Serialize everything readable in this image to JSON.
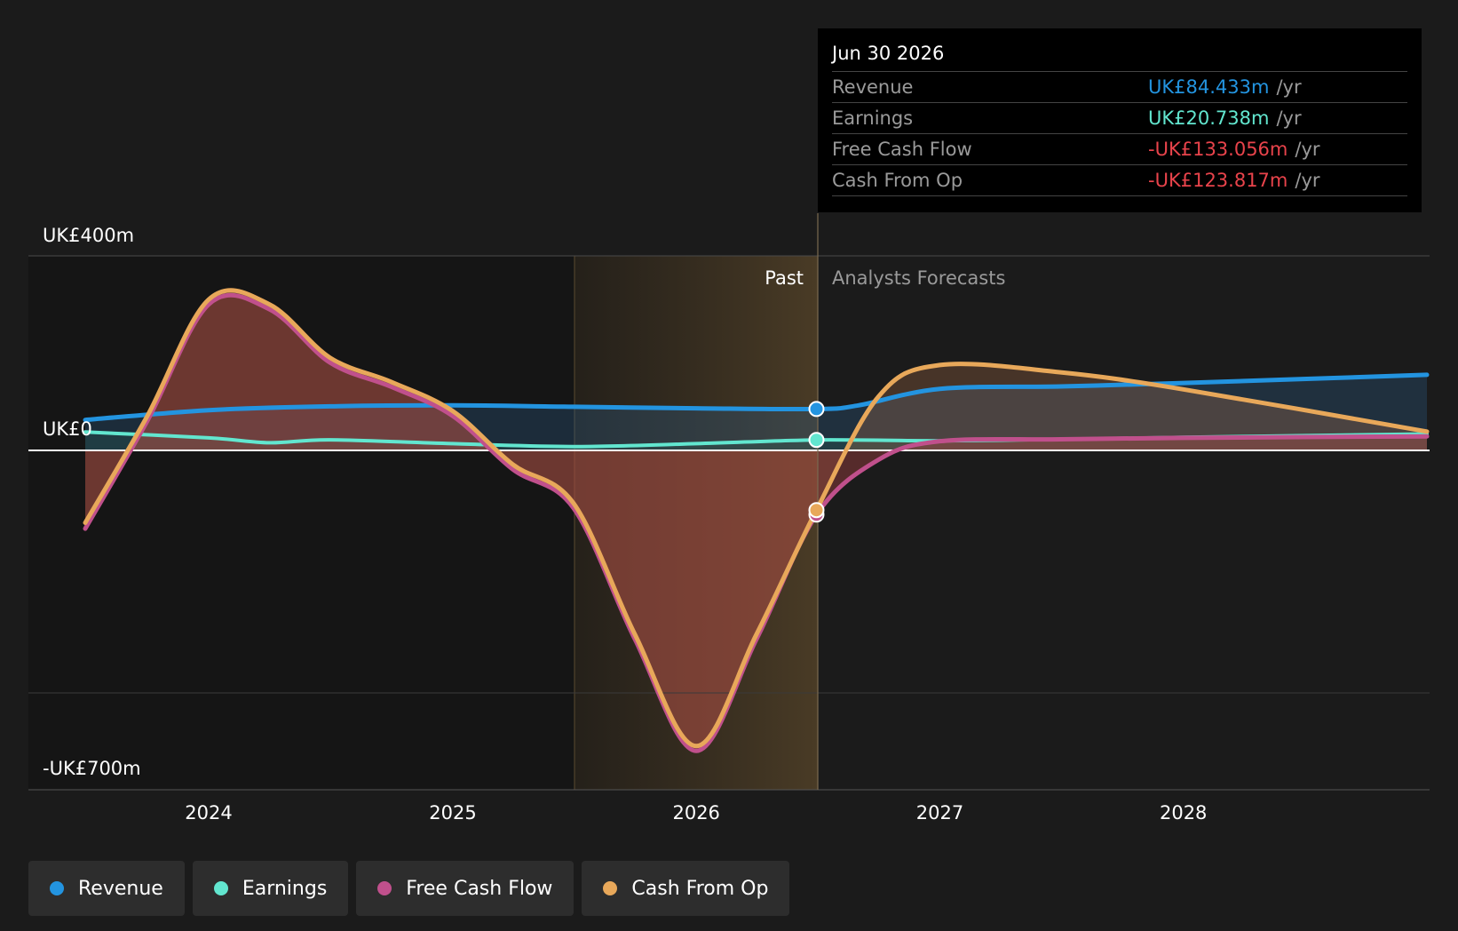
{
  "colors": {
    "revenue": "#2394e0",
    "earnings": "#62e6cf",
    "free_cash_flow": "#c0508c",
    "cash_from_op": "#e8a85a",
    "negative": "#e8434b",
    "background": "#1b1b1b"
  },
  "y_axis": {
    "top_label": "UK£400m",
    "zero_label": "UK£0",
    "bottom_label": "-UK£700m"
  },
  "regions": {
    "past_label": "Past",
    "forecast_label": "Analysts Forecasts"
  },
  "tooltip": {
    "date": "Jun 30 2026",
    "rows": [
      {
        "label": "Revenue",
        "value": "UK£84.433m",
        "unit": "/yr"
      },
      {
        "label": "Earnings",
        "value": "UK£20.738m",
        "unit": "/yr"
      },
      {
        "label": "Free Cash Flow",
        "value": "-UK£133.056m",
        "unit": "/yr"
      },
      {
        "label": "Cash From Op",
        "value": "-UK£123.817m",
        "unit": "/yr"
      }
    ]
  },
  "legend": [
    {
      "label": "Revenue",
      "color": "#2394e0"
    },
    {
      "label": "Earnings",
      "color": "#62e6cf"
    },
    {
      "label": "Free Cash Flow",
      "color": "#c0508c"
    },
    {
      "label": "Cash From Op",
      "color": "#e8a85a"
    }
  ],
  "chart_data": {
    "type": "line",
    "x_ticks": [
      "2024",
      "2025",
      "2026",
      "2027",
      "2028"
    ],
    "ylim": [
      -700,
      400
    ],
    "y_unit": "UK£m",
    "past_forecast_split": "2026-06-30",
    "grid": true,
    "legend_position": "bottom",
    "series": [
      {
        "name": "Revenue",
        "points": [
          [
            "2023-06-30",
            62
          ],
          [
            "2024-01-01",
            82
          ],
          [
            "2024-07-01",
            90
          ],
          [
            "2025-01-01",
            92
          ],
          [
            "2025-07-01",
            89
          ],
          [
            "2026-01-01",
            86
          ],
          [
            "2026-06-30",
            84.4
          ],
          [
            "2026-09-01",
            92
          ],
          [
            "2027-01-01",
            126
          ],
          [
            "2027-07-01",
            131
          ],
          [
            "2028-01-01",
            138
          ],
          [
            "2028-12-31",
            155
          ]
        ]
      },
      {
        "name": "Earnings",
        "points": [
          [
            "2023-06-30",
            37
          ],
          [
            "2024-01-01",
            25
          ],
          [
            "2024-04-01",
            15
          ],
          [
            "2024-07-01",
            21
          ],
          [
            "2025-01-01",
            13
          ],
          [
            "2025-07-01",
            7
          ],
          [
            "2026-01-01",
            13
          ],
          [
            "2026-06-30",
            20.7
          ],
          [
            "2027-01-01",
            19
          ],
          [
            "2027-07-01",
            22
          ],
          [
            "2028-01-01",
            26
          ],
          [
            "2028-12-31",
            33
          ]
        ]
      },
      {
        "name": "Free Cash Flow",
        "points": [
          [
            "2023-06-30",
            -162
          ],
          [
            "2023-10-01",
            60
          ],
          [
            "2024-01-01",
            300
          ],
          [
            "2024-04-01",
            290
          ],
          [
            "2024-07-01",
            180
          ],
          [
            "2024-10-01",
            130
          ],
          [
            "2025-01-01",
            70
          ],
          [
            "2025-04-01",
            -40
          ],
          [
            "2025-07-01",
            -120
          ],
          [
            "2025-10-01",
            -390
          ],
          [
            "2026-01-01",
            -620
          ],
          [
            "2026-04-01",
            -390
          ],
          [
            "2026-06-30",
            -133.1
          ],
          [
            "2026-10-01",
            -20
          ],
          [
            "2027-01-01",
            18
          ],
          [
            "2027-07-01",
            22
          ],
          [
            "2028-01-01",
            25
          ],
          [
            "2028-12-31",
            28
          ]
        ]
      },
      {
        "name": "Cash From Op",
        "points": [
          [
            "2023-06-30",
            -150
          ],
          [
            "2023-10-01",
            70
          ],
          [
            "2024-01-01",
            310
          ],
          [
            "2024-04-01",
            300
          ],
          [
            "2024-07-01",
            190
          ],
          [
            "2024-10-01",
            140
          ],
          [
            "2025-01-01",
            80
          ],
          [
            "2025-04-01",
            -30
          ],
          [
            "2025-07-01",
            -110
          ],
          [
            "2025-10-01",
            -380
          ],
          [
            "2026-01-01",
            -610
          ],
          [
            "2026-04-01",
            -380
          ],
          [
            "2026-06-30",
            -123.8
          ],
          [
            "2026-10-01",
            110
          ],
          [
            "2027-01-01",
            175
          ],
          [
            "2027-07-01",
            160
          ],
          [
            "2028-01-01",
            125
          ],
          [
            "2028-12-31",
            38
          ]
        ]
      }
    ]
  }
}
